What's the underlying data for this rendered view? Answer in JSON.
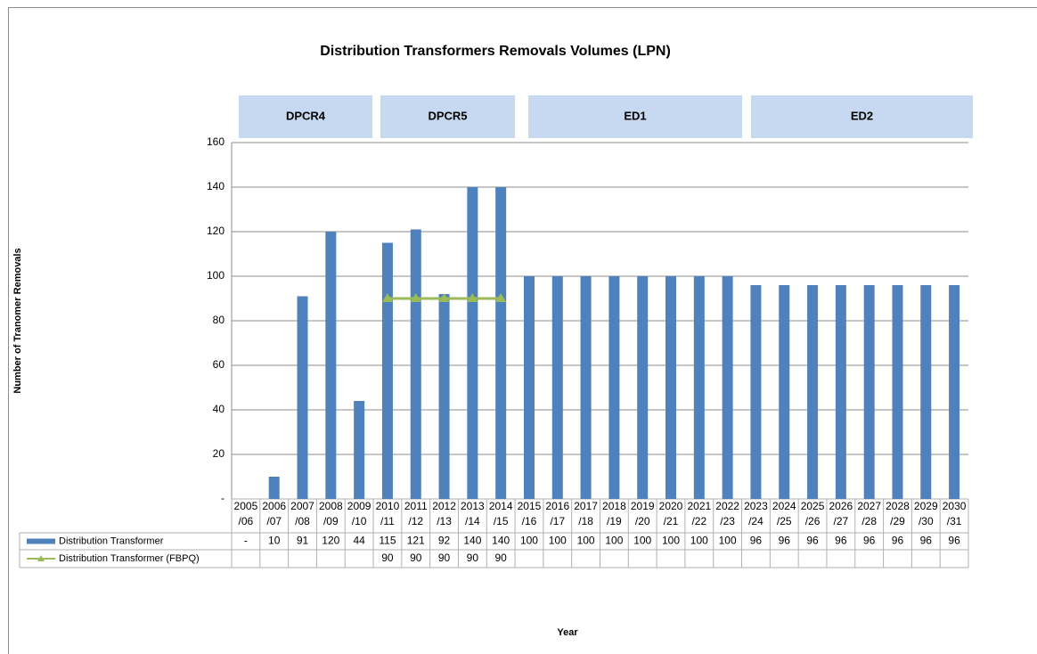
{
  "chart_data": {
    "type": "bar",
    "title": "Distribution Transformers Removals Volumes (LPN)",
    "y_label": "Number of Tranomer Removals",
    "x_label": "Year",
    "periods": [
      "DPCR4",
      "DPCR5",
      "ED1",
      "ED2"
    ],
    "categories": [
      "2005/06",
      "2006/07",
      "2007/08",
      "2008/09",
      "2009/10",
      "2010/11",
      "2011/12",
      "2012/13",
      "2013/14",
      "2014/15",
      "2015/16",
      "2016/17",
      "2017/18",
      "2018/19",
      "2019/20",
      "2020/21",
      "2021/22",
      "2022/23",
      "2023/24",
      "2024/25",
      "2025/26",
      "2026/27",
      "2027/28",
      "2028/29",
      "2029/30",
      "2030/31"
    ],
    "series": [
      {
        "name": "Distribution Transformer",
        "type": "bar",
        "color": "#4f81bd",
        "values": [
          0,
          10,
          91,
          120,
          44,
          115,
          121,
          92,
          140,
          140,
          100,
          100,
          100,
          100,
          100,
          100,
          100,
          100,
          96,
          96,
          96,
          96,
          96,
          96,
          96,
          96
        ],
        "value_labels": {
          "0": "-"
        }
      },
      {
        "name": "Distribution Transformer  (FBPQ)",
        "type": "line",
        "color": "#9bbb59",
        "values": [
          null,
          null,
          null,
          null,
          null,
          90,
          90,
          90,
          90,
          90,
          null,
          null,
          null,
          null,
          null,
          null,
          null,
          null,
          null,
          null,
          null,
          null,
          null,
          null,
          null,
          null
        ]
      }
    ],
    "ylim": [
      0,
      160
    ],
    "yticks": [
      {
        "value": 0,
        "label": "-"
      },
      20,
      40,
      60,
      80,
      100,
      120,
      140,
      160
    ],
    "grid": true
  }
}
